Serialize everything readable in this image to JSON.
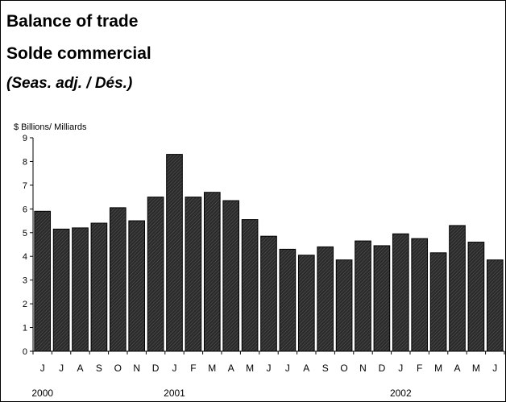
{
  "chart_data": {
    "type": "bar",
    "title": "Balance of trade",
    "subtitle": "Solde commercial",
    "note": "(Seas. adj. / Dés.)",
    "ylabel": "$ Billions/ Milliards",
    "xlabel": "",
    "ylim": [
      0,
      9
    ],
    "yticks": [
      "0",
      "1",
      "2",
      "3",
      "4",
      "5",
      "6",
      "7",
      "8",
      "9"
    ],
    "grid": false,
    "categories": [
      "J",
      "J",
      "A",
      "S",
      "O",
      "N",
      "D",
      "J",
      "F",
      "M",
      "A",
      "M",
      "J",
      "J",
      "A",
      "S",
      "O",
      "N",
      "D",
      "J",
      "F",
      "M",
      "A",
      "M",
      "J"
    ],
    "values": [
      5.9,
      5.15,
      5.2,
      5.4,
      6.05,
      5.5,
      6.5,
      8.3,
      6.5,
      6.7,
      6.35,
      5.55,
      4.85,
      4.3,
      4.05,
      4.4,
      3.85,
      4.65,
      4.45,
      4.95,
      4.75,
      4.15,
      5.3,
      4.6,
      3.85
    ],
    "year_labels": [
      {
        "label": "2000",
        "index": 0
      },
      {
        "label": "2001",
        "index": 7
      },
      {
        "label": "2002",
        "index": 19
      }
    ],
    "bar_fill": "#2b2b2b"
  }
}
